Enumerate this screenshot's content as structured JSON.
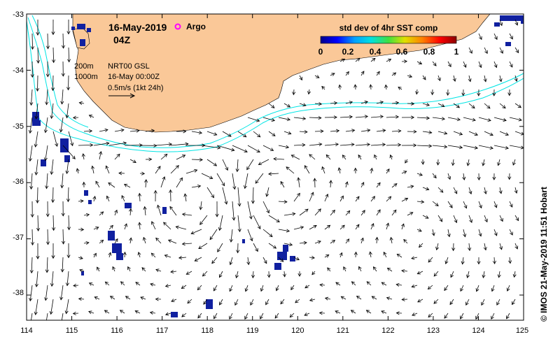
{
  "header": {
    "date": "16-May-2019",
    "hour": "04Z",
    "argo_label": "Argo",
    "argo_color": "#ff00ff"
  },
  "legend_box": {
    "depth_200": "200m",
    "depth_1000": "1000m",
    "product": "NRT00 GSL",
    "product_time": "16-May 00:00Z",
    "scale_label": "0.5m/s (1kt 24h)"
  },
  "colorbar": {
    "title": "std dev of 4hr SST comp",
    "ticks": [
      "0",
      "0.2",
      "0.4",
      "0.6",
      "0.8",
      "1"
    ],
    "colors": [
      "#00008b",
      "#0000ff",
      "#00a0ff",
      "#00e0e0",
      "#40e040",
      "#e0e000",
      "#ff8000",
      "#ff0000",
      "#8b0000"
    ]
  },
  "axes": {
    "x_ticks": [
      "114",
      "115",
      "116",
      "117",
      "118",
      "119",
      "120",
      "121",
      "122",
      "123",
      "124",
      "125"
    ],
    "y_ticks": [
      "-33",
      "-34",
      "-35",
      "-36",
      "-37",
      "-38"
    ]
  },
  "colors": {
    "land": "#fac898",
    "isobath": "#00e5e5",
    "sst_patch": "#1020a0",
    "arrow": "#000000"
  },
  "credit": "© IMOS 21-May-2019 11:51 Hobart"
}
